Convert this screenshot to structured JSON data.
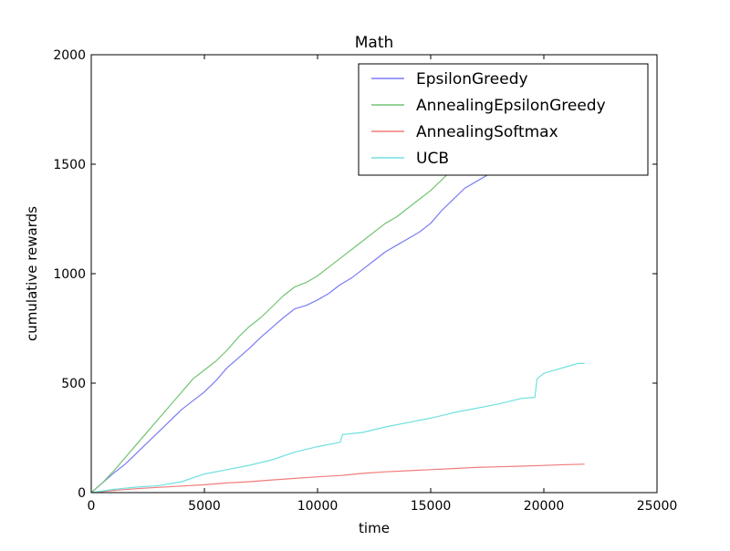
{
  "chart_data": {
    "type": "line",
    "title": "Math",
    "xlabel": "time",
    "ylabel": "cumulative rewards",
    "xlim": [
      0,
      25000
    ],
    "ylim": [
      0,
      2000
    ],
    "xticks": [
      0,
      5000,
      10000,
      15000,
      20000,
      25000
    ],
    "yticks": [
      0,
      500,
      1000,
      1500,
      2000
    ],
    "legend_position": "top-right",
    "grid": false,
    "series": [
      {
        "name": "EpsilonGreedy",
        "color": "#7b7bf5",
        "x": [
          0,
          500,
          1000,
          1500,
          2000,
          2500,
          3000,
          3500,
          4000,
          4500,
          5000,
          5500,
          6000,
          6500,
          7000,
          7500,
          8000,
          8500,
          9000,
          9500,
          10000,
          10500,
          11000,
          11500,
          12000,
          12500,
          13000,
          13500,
          14000,
          14500,
          15000,
          15500,
          16000,
          16500,
          17000,
          17500,
          18000,
          18500
        ],
        "y": [
          0,
          45,
          90,
          130,
          180,
          230,
          280,
          330,
          380,
          420,
          460,
          510,
          570,
          615,
          660,
          710,
          755,
          800,
          840,
          855,
          880,
          910,
          950,
          980,
          1020,
          1060,
          1100,
          1130,
          1160,
          1190,
          1230,
          1290,
          1340,
          1390,
          1420,
          1450,
          1480,
          1520
        ]
      },
      {
        "name": "AnnealingEpsilonGreedy",
        "color": "#72c472",
        "x": [
          0,
          500,
          1000,
          1500,
          2000,
          2500,
          3000,
          3500,
          4000,
          4500,
          5000,
          5500,
          6000,
          6500,
          7000,
          7500,
          8000,
          8500,
          9000,
          9500,
          10000,
          10500,
          11000,
          11500,
          12000,
          12500,
          13000,
          13500,
          14000,
          14500,
          15000,
          15500,
          16000
        ],
        "y": [
          0,
          45,
          100,
          160,
          220,
          280,
          340,
          400,
          460,
          520,
          560,
          600,
          650,
          710,
          760,
          800,
          850,
          900,
          940,
          960,
          990,
          1030,
          1070,
          1110,
          1150,
          1190,
          1230,
          1260,
          1300,
          1340,
          1380,
          1430,
          1480
        ]
      },
      {
        "name": "AnnealingSoftmax",
        "color": "#f07c7c",
        "x": [
          0,
          1000,
          2000,
          3000,
          4000,
          5000,
          6000,
          7000,
          8000,
          9000,
          10000,
          11000,
          12000,
          13000,
          14000,
          15000,
          16000,
          17000,
          18000,
          19000,
          20000,
          21000,
          21800
        ],
        "y": [
          0,
          10,
          18,
          24,
          30,
          36,
          44,
          50,
          58,
          65,
          72,
          78,
          88,
          95,
          100,
          105,
          110,
          115,
          118,
          121,
          124,
          128,
          130
        ]
      },
      {
        "name": "UCB",
        "color": "#70e0e0",
        "x": [
          0,
          1000,
          2000,
          3000,
          4000,
          5000,
          6000,
          7000,
          8000,
          9000,
          10000,
          11000,
          11100,
          12000,
          13000,
          14000,
          15000,
          16000,
          17000,
          18000,
          19000,
          19600,
          19700,
          20000,
          20500,
          21000,
          21500,
          21800
        ],
        "y": [
          0,
          15,
          25,
          32,
          50,
          85,
          105,
          125,
          150,
          185,
          210,
          230,
          265,
          275,
          300,
          320,
          340,
          365,
          385,
          405,
          430,
          435,
          520,
          545,
          560,
          575,
          590,
          590
        ]
      }
    ]
  }
}
